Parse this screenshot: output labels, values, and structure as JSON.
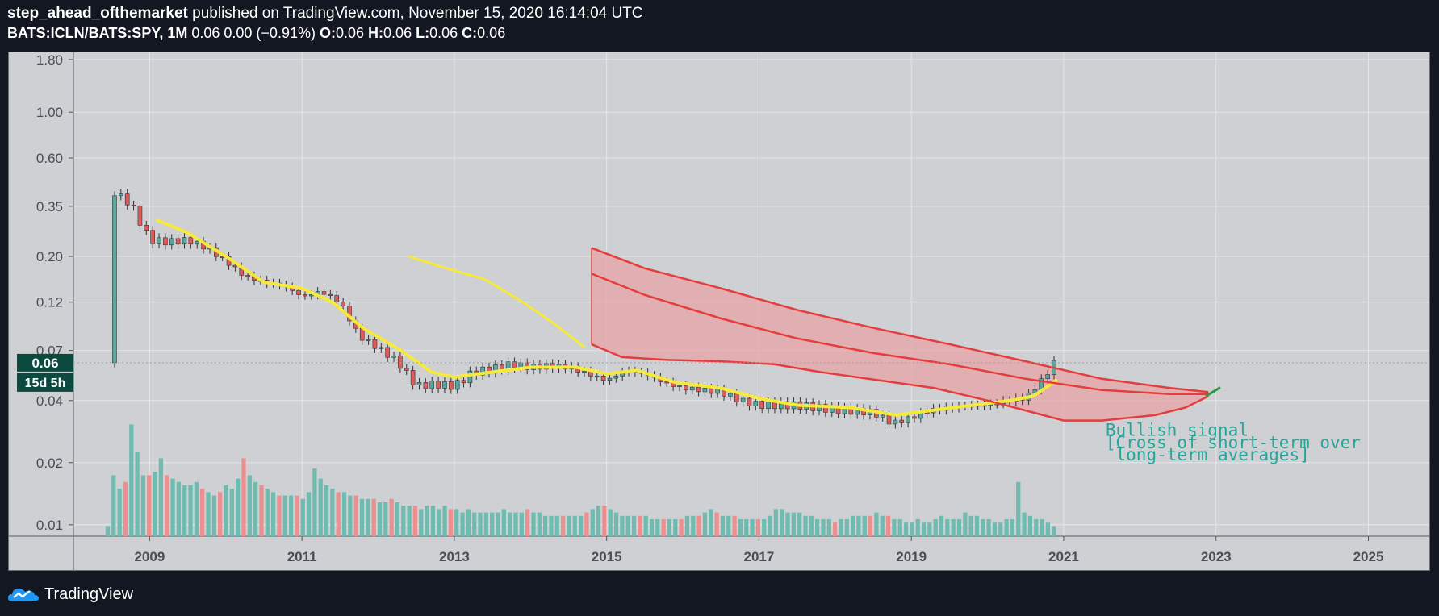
{
  "header": {
    "author": "step_ahead_ofthemarket",
    "published_text": "published on TradingView.com, November 15, 2020 16:14:04 UTC",
    "symbol": "BATS:ICLN/BATS:SPY, 1M",
    "price_change": "0.06 0.00 (−0.91%)",
    "ohlc": [
      {
        "label": "O:",
        "value": "0.06"
      },
      {
        "label": "H:",
        "value": "0.06"
      },
      {
        "label": "L:",
        "value": "0.06"
      },
      {
        "label": "C:",
        "value": "0.06"
      }
    ]
  },
  "footer": {
    "brand": "TradingView",
    "icon": "tradingview-cloud-logo-icon"
  },
  "colors": {
    "background": "#131722",
    "plot_bg": "#ced0d3",
    "grid": "#e4e5e8",
    "candle_up": "#55a89b",
    "candle_down": "#e05a5a",
    "vol_up": "#6fbbb0",
    "vol_down": "#ec8f8f",
    "sma_yellow": "#f5ea3c",
    "band_red": "#e53d3d",
    "band_fill": "#e7a3a6",
    "annotation": "#26a69a",
    "price_label_bg": "#0c4a3f"
  },
  "chart_data": {
    "type": "candlestick",
    "title": "BATS:ICLN/BATS:SPY, 1M",
    "y_scale": "log",
    "ylim": [
      0.0088,
      1.95
    ],
    "xlim": [
      2008.0,
      2025.8
    ],
    "y_ticks": [
      "1.80",
      "1.00",
      "0.60",
      "0.35",
      "0.20",
      "0.12",
      "0.07",
      "0.04",
      "0.02",
      "0.01"
    ],
    "x_ticks": [
      "2009",
      "2011",
      "2013",
      "2015",
      "2017",
      "2019",
      "2021",
      "2023",
      "2025"
    ],
    "last_price_label": "0.06",
    "countdown_label": "15d 5h",
    "last_price": 0.061,
    "series": [
      {
        "name": "ICLN/SPY close (monthly)",
        "points": [
          [
            2008.5,
            0.42
          ],
          [
            2008.75,
            0.36
          ],
          [
            2009.0,
            0.24
          ],
          [
            2009.25,
            0.235
          ],
          [
            2009.5,
            0.24
          ],
          [
            2009.75,
            0.22
          ],
          [
            2010.0,
            0.19
          ],
          [
            2010.25,
            0.16
          ],
          [
            2010.5,
            0.15
          ],
          [
            2010.75,
            0.145
          ],
          [
            2011.0,
            0.128
          ],
          [
            2011.25,
            0.135
          ],
          [
            2011.5,
            0.12
          ],
          [
            2011.75,
            0.082
          ],
          [
            2012.0,
            0.072
          ],
          [
            2012.25,
            0.062
          ],
          [
            2012.5,
            0.047
          ],
          [
            2012.75,
            0.048
          ],
          [
            2013.0,
            0.047
          ],
          [
            2013.25,
            0.055
          ],
          [
            2013.5,
            0.057
          ],
          [
            2013.75,
            0.06
          ],
          [
            2014.0,
            0.058
          ],
          [
            2014.25,
            0.059
          ],
          [
            2014.5,
            0.058
          ],
          [
            2014.75,
            0.054
          ],
          [
            2015.0,
            0.05
          ],
          [
            2015.25,
            0.056
          ],
          [
            2015.5,
            0.054
          ],
          [
            2015.75,
            0.049
          ],
          [
            2016.0,
            0.046
          ],
          [
            2016.25,
            0.045
          ],
          [
            2016.5,
            0.044
          ],
          [
            2016.75,
            0.04
          ],
          [
            2017.0,
            0.038
          ],
          [
            2017.5,
            0.038
          ],
          [
            2018.0,
            0.036
          ],
          [
            2018.5,
            0.035
          ],
          [
            2018.75,
            0.031
          ],
          [
            2019.0,
            0.033
          ],
          [
            2019.25,
            0.036
          ],
          [
            2019.5,
            0.037
          ],
          [
            2019.75,
            0.038
          ],
          [
            2020.0,
            0.038
          ],
          [
            2020.25,
            0.04
          ],
          [
            2020.5,
            0.041
          ],
          [
            2020.75,
            0.052
          ],
          [
            2020.87,
            0.061
          ]
        ]
      },
      {
        "name": "short-term average (yellow, drawn)",
        "points": [
          [
            2009.1,
            0.3
          ],
          [
            2009.5,
            0.26
          ],
          [
            2010.0,
            0.2
          ],
          [
            2010.5,
            0.15
          ],
          [
            2011.0,
            0.14
          ],
          [
            2011.4,
            0.12
          ],
          [
            2011.8,
            0.09
          ],
          [
            2012.3,
            0.07
          ],
          [
            2012.7,
            0.055
          ],
          [
            2013.0,
            0.052
          ],
          [
            2013.5,
            0.055
          ],
          [
            2014.0,
            0.058
          ],
          [
            2014.6,
            0.058
          ],
          [
            2015.0,
            0.054
          ],
          [
            2015.4,
            0.056
          ],
          [
            2015.9,
            0.049
          ],
          [
            2016.5,
            0.046
          ],
          [
            2017.0,
            0.041
          ],
          [
            2017.5,
            0.038
          ],
          [
            2018.2,
            0.037
          ],
          [
            2018.8,
            0.034
          ],
          [
            2019.3,
            0.036
          ],
          [
            2019.8,
            0.038
          ],
          [
            2020.3,
            0.04
          ],
          [
            2020.6,
            0.042
          ],
          [
            2020.9,
            0.05
          ]
        ]
      },
      {
        "name": "long-term average (yellow, earlier)",
        "points": [
          [
            2012.4,
            0.2
          ],
          [
            2012.9,
            0.175
          ],
          [
            2013.4,
            0.155
          ],
          [
            2013.9,
            0.12
          ],
          [
            2014.3,
            0.095
          ],
          [
            2014.7,
            0.073
          ]
        ]
      },
      {
        "name": "upper band (red)",
        "points": [
          [
            2014.8,
            0.22
          ],
          [
            2015.5,
            0.175
          ],
          [
            2016.5,
            0.14
          ],
          [
            2017.5,
            0.11
          ],
          [
            2018.5,
            0.09
          ],
          [
            2019.5,
            0.075
          ],
          [
            2020.5,
            0.062
          ],
          [
            2021.5,
            0.051
          ],
          [
            2022.4,
            0.046
          ],
          [
            2022.9,
            0.044
          ]
        ]
      },
      {
        "name": "middle band (red)",
        "points": [
          [
            2014.8,
            0.165
          ],
          [
            2015.5,
            0.13
          ],
          [
            2016.5,
            0.1
          ],
          [
            2017.5,
            0.08
          ],
          [
            2018.5,
            0.068
          ],
          [
            2019.5,
            0.06
          ],
          [
            2020.5,
            0.051
          ],
          [
            2021.5,
            0.045
          ],
          [
            2022.4,
            0.043
          ],
          [
            2022.9,
            0.043
          ]
        ]
      },
      {
        "name": "lower band (red)",
        "points": [
          [
            2014.8,
            0.075
          ],
          [
            2015.2,
            0.065
          ],
          [
            2015.8,
            0.063
          ],
          [
            2016.5,
            0.062
          ],
          [
            2017.2,
            0.06
          ],
          [
            2017.8,
            0.055
          ],
          [
            2018.6,
            0.05
          ],
          [
            2019.3,
            0.046
          ],
          [
            2020.0,
            0.04
          ],
          [
            2020.6,
            0.035
          ],
          [
            2021.0,
            0.032
          ],
          [
            2021.5,
            0.032
          ],
          [
            2022.2,
            0.034
          ],
          [
            2022.6,
            0.037
          ],
          [
            2022.9,
            0.042
          ]
        ]
      }
    ],
    "volume_bars": [
      3,
      18,
      14,
      16,
      33,
      25,
      18,
      18,
      19,
      23,
      18,
      17,
      16,
      15,
      15,
      16,
      14,
      13,
      12,
      13,
      15,
      14,
      17,
      23,
      18,
      16,
      15,
      14,
      13,
      12,
      12,
      12,
      12,
      11,
      13,
      20,
      17,
      15,
      14,
      13,
      13,
      12,
      12,
      11,
      11,
      11,
      10,
      10,
      11,
      10,
      9,
      9,
      9,
      8,
      9,
      9,
      8,
      9,
      8,
      8,
      7,
      8,
      7,
      7,
      7,
      7,
      7,
      8,
      7,
      7,
      7,
      8,
      7,
      7,
      6,
      6,
      6,
      6,
      6,
      6,
      6,
      7,
      8,
      9,
      9,
      8,
      7,
      6,
      6,
      6,
      6,
      6,
      5,
      5,
      5,
      5,
      5,
      5,
      6,
      6,
      6,
      7,
      8,
      7,
      6,
      6,
      6,
      5,
      5,
      5,
      5,
      5,
      6,
      8,
      8,
      7,
      7,
      7,
      6,
      6,
      5,
      5,
      5,
      4,
      5,
      5,
      6,
      6,
      6,
      6,
      7,
      6,
      6,
      5,
      5,
      4,
      4,
      5,
      4,
      4,
      5,
      6,
      5,
      5,
      5,
      7,
      6,
      6,
      5,
      5,
      4,
      4,
      5,
      5,
      16,
      7,
      6,
      5,
      5,
      4,
      3
    ],
    "annotations": [
      {
        "text": "Bullish signal",
        "x": 2021.55,
        "y": 0.027
      },
      {
        "text": "[Cross of short-term over",
        "x": 2021.55,
        "y": 0.0235
      },
      {
        "text": " long-term averages]",
        "x": 2021.55,
        "y": 0.0205
      }
    ]
  }
}
